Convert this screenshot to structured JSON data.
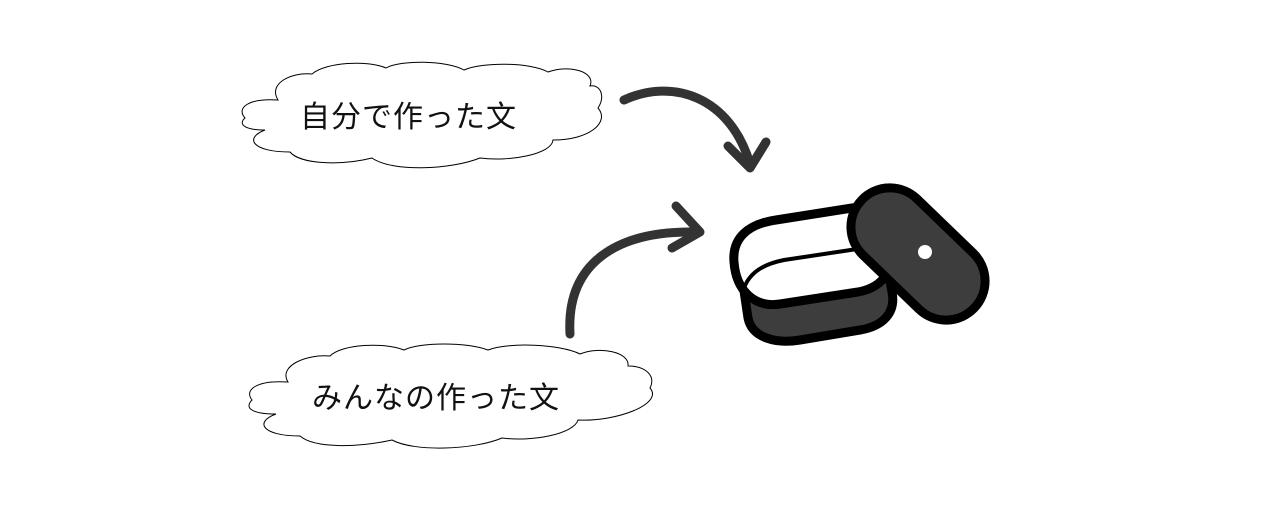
{
  "labels": {
    "own_sentences": "自分で作った文",
    "everyone_sentences": "みんなの作った文"
  },
  "colors": {
    "background": "#ffffff",
    "outline": "#000000",
    "arrow": "#333333",
    "box_fill": "#3d3d3d",
    "box_interior": "#ffffff"
  },
  "icons": [
    "cloud-bubble",
    "curved-arrow",
    "open-storage-box"
  ]
}
